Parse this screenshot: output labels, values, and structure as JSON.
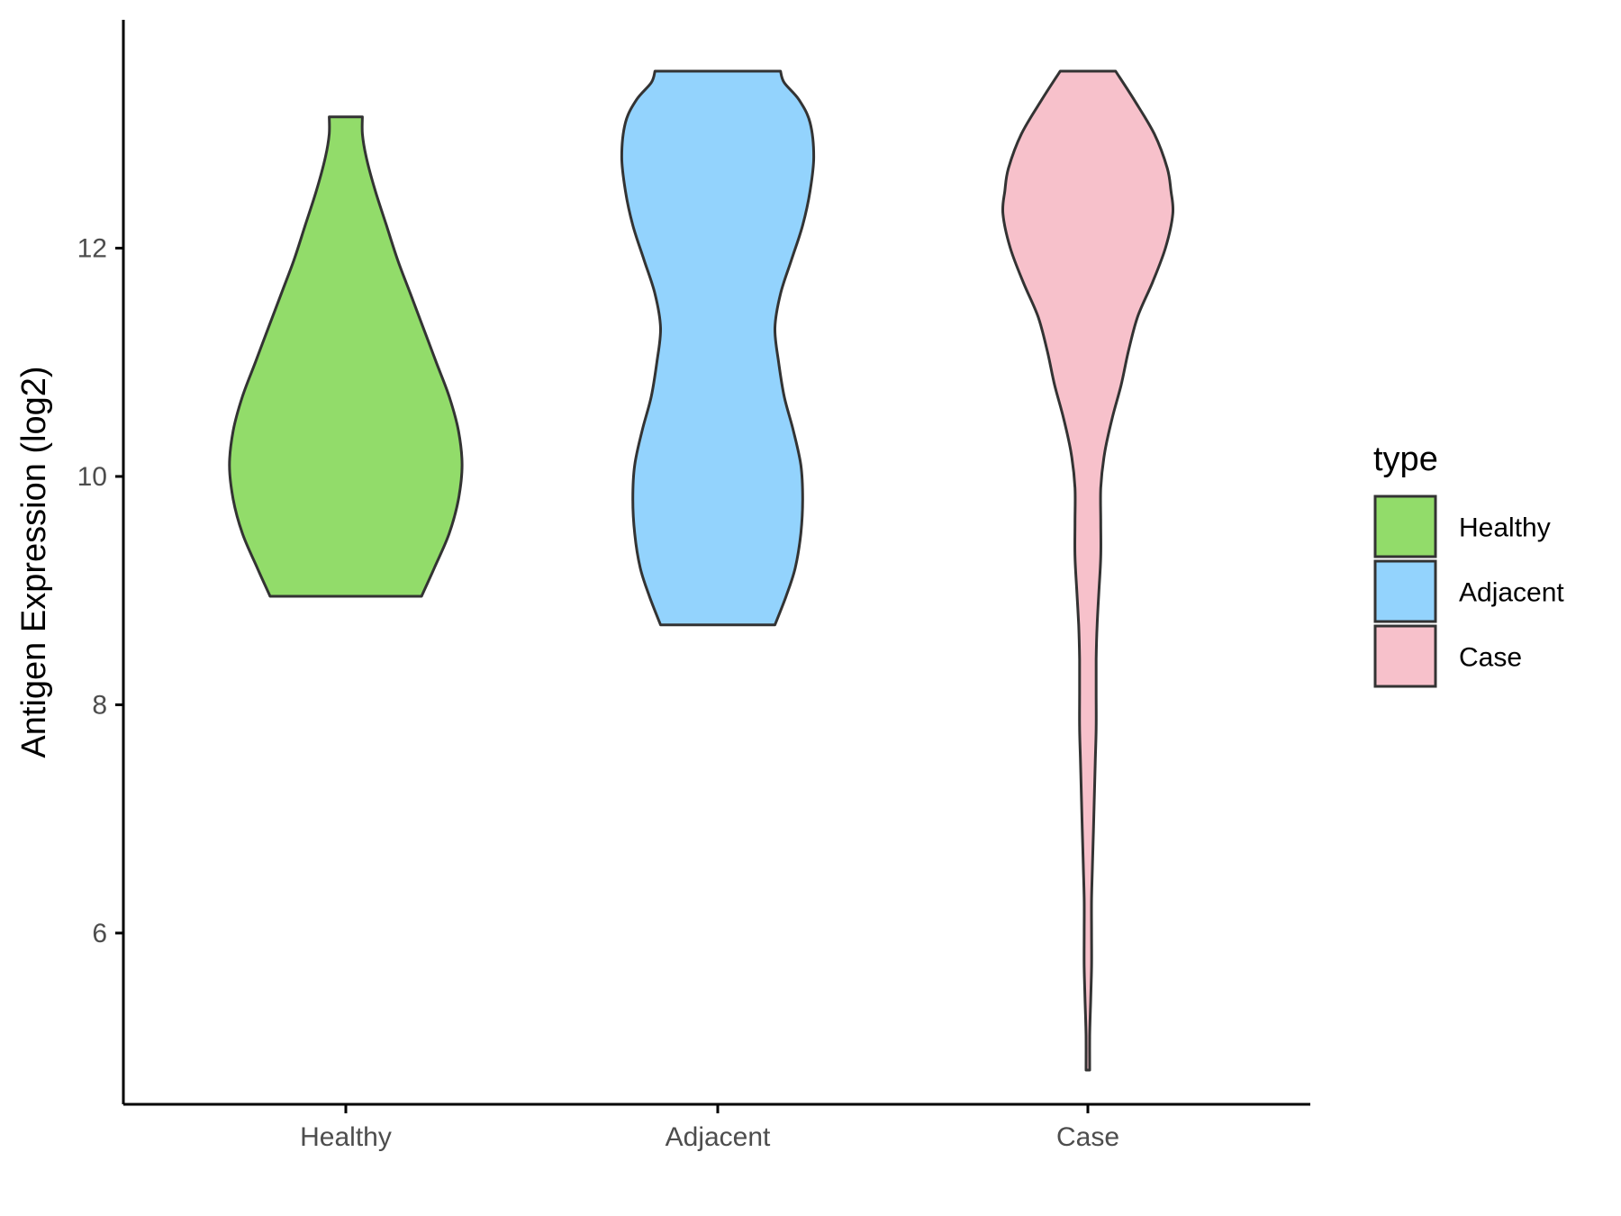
{
  "chart_data": {
    "type": "violin",
    "xlabel": "",
    "ylabel": "Antigen Expression (log2)",
    "ylim": [
      4.5,
      14.0
    ],
    "y_ticks": [
      6,
      8,
      10,
      12
    ],
    "grid": false,
    "legend": {
      "title": "type",
      "position": "right",
      "items": [
        {
          "label": "Healthy",
          "color": "#92dc6a"
        },
        {
          "label": "Adjacent",
          "color": "#93d3fd"
        },
        {
          "label": "Case",
          "color": "#f7c1cb"
        }
      ]
    },
    "categories": [
      "Healthy",
      "Adjacent",
      "Case"
    ],
    "series": [
      {
        "name": "Healthy",
        "color": "#92dc6a",
        "min": 8.95,
        "max": 13.15,
        "density": [
          [
            8.95,
            0.41
          ],
          [
            9.2,
            0.48
          ],
          [
            9.5,
            0.56
          ],
          [
            9.8,
            0.61
          ],
          [
            10.1,
            0.63
          ],
          [
            10.4,
            0.61
          ],
          [
            10.7,
            0.56
          ],
          [
            11.0,
            0.49
          ],
          [
            11.3,
            0.42
          ],
          [
            11.6,
            0.35
          ],
          [
            11.9,
            0.28
          ],
          [
            12.2,
            0.22
          ],
          [
            12.5,
            0.16
          ],
          [
            12.8,
            0.11
          ],
          [
            13.0,
            0.09
          ],
          [
            13.15,
            0.09
          ]
        ]
      },
      {
        "name": "Adjacent",
        "color": "#93d3fd",
        "min": 8.7,
        "max": 13.55,
        "density": [
          [
            8.7,
            0.31
          ],
          [
            8.95,
            0.37
          ],
          [
            9.2,
            0.42
          ],
          [
            9.5,
            0.45
          ],
          [
            9.8,
            0.46
          ],
          [
            10.1,
            0.45
          ],
          [
            10.4,
            0.41
          ],
          [
            10.7,
            0.36
          ],
          [
            11.0,
            0.33
          ],
          [
            11.3,
            0.31
          ],
          [
            11.6,
            0.34
          ],
          [
            11.9,
            0.4
          ],
          [
            12.2,
            0.46
          ],
          [
            12.5,
            0.5
          ],
          [
            12.8,
            0.52
          ],
          [
            13.1,
            0.5
          ],
          [
            13.3,
            0.44
          ],
          [
            13.45,
            0.36
          ],
          [
            13.55,
            0.34
          ]
        ]
      },
      {
        "name": "Case",
        "color": "#f7c1cb",
        "min": 4.8,
        "max": 13.55,
        "density": [
          [
            4.8,
            0.01
          ],
          [
            5.1,
            0.01
          ],
          [
            5.4,
            0.015
          ],
          [
            5.7,
            0.02
          ],
          [
            6.0,
            0.02
          ],
          [
            6.3,
            0.02
          ],
          [
            6.6,
            0.025
          ],
          [
            6.9,
            0.03
          ],
          [
            7.2,
            0.035
          ],
          [
            7.5,
            0.04
          ],
          [
            7.8,
            0.045
          ],
          [
            8.1,
            0.045
          ],
          [
            8.4,
            0.045
          ],
          [
            8.7,
            0.05
          ],
          [
            9.0,
            0.06
          ],
          [
            9.3,
            0.07
          ],
          [
            9.6,
            0.07
          ],
          [
            9.9,
            0.07
          ],
          [
            10.2,
            0.09
          ],
          [
            10.5,
            0.13
          ],
          [
            10.8,
            0.18
          ],
          [
            11.1,
            0.22
          ],
          [
            11.4,
            0.27
          ],
          [
            11.7,
            0.35
          ],
          [
            12.0,
            0.42
          ],
          [
            12.3,
            0.46
          ],
          [
            12.5,
            0.45
          ],
          [
            12.7,
            0.43
          ],
          [
            13.0,
            0.36
          ],
          [
            13.3,
            0.25
          ],
          [
            13.55,
            0.15
          ]
        ]
      }
    ]
  }
}
